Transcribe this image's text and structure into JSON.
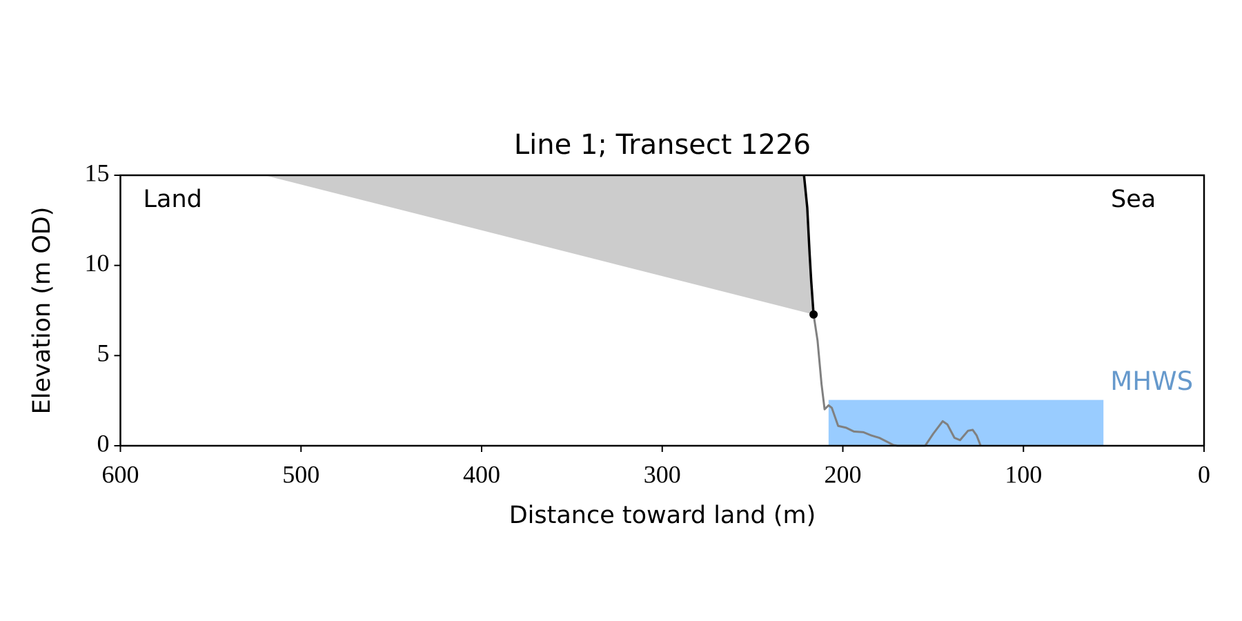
{
  "chart_data": {
    "type": "line",
    "title": "Line 1; Transect 1226",
    "x_label": "Distance toward land (m)",
    "y_label": "Elevation (m OD)",
    "xlim": [
      600,
      0
    ],
    "ylim": [
      0,
      15
    ],
    "xticks": [
      600,
      500,
      400,
      300,
      200,
      100,
      0
    ],
    "yticks": [
      0,
      5,
      10,
      15
    ],
    "area": {
      "color": "#cccccc",
      "x": [
        520.2,
        221.5,
        219.7,
        218.4,
        217.5,
        216.2
      ],
      "values": [
        15,
        15,
        13.2,
        10.66,
        9.12,
        7.28
      ]
    },
    "band": {
      "label": "MHWS",
      "color": "#99ccff",
      "label_color": "#6699cc",
      "x": [
        207.9,
        55.7
      ],
      "y": 2.54
    },
    "series": [
      {
        "color": "#808080",
        "x": [
          216.2,
          214.0,
          211.8,
          210.1,
          207.9,
          206.1,
          202.6,
          198.2,
          193.9,
          188.6,
          184.2,
          179.8,
          175.5,
          172.0,
          169.8,
          154.4,
          150.0,
          144.7,
          142.1,
          138.2,
          135.1,
          130.7,
          128.1,
          125.9,
          123.7
        ],
        "values": [
          7.28,
          5.83,
          3.42,
          2.02,
          2.24,
          2.1,
          1.1,
          1.0,
          0.79,
          0.75,
          0.57,
          0.44,
          0.22,
          0.04,
          0,
          0,
          0.66,
          1.36,
          1.18,
          0.44,
          0.31,
          0.83,
          0.88,
          0.57,
          0
        ]
      },
      {
        "color": "#000000",
        "x": [
          221.5,
          219.7,
          218.4,
          217.5,
          216.2
        ],
        "values": [
          15,
          13.2,
          10.66,
          9.12,
          7.28
        ]
      }
    ],
    "point": {
      "color": "#000000",
      "x": 216.2,
      "y": 7.28
    },
    "annotations": [
      {
        "text": "Land",
        "corner": "upper left"
      },
      {
        "text": "Sea",
        "corner": "upper right"
      }
    ]
  }
}
